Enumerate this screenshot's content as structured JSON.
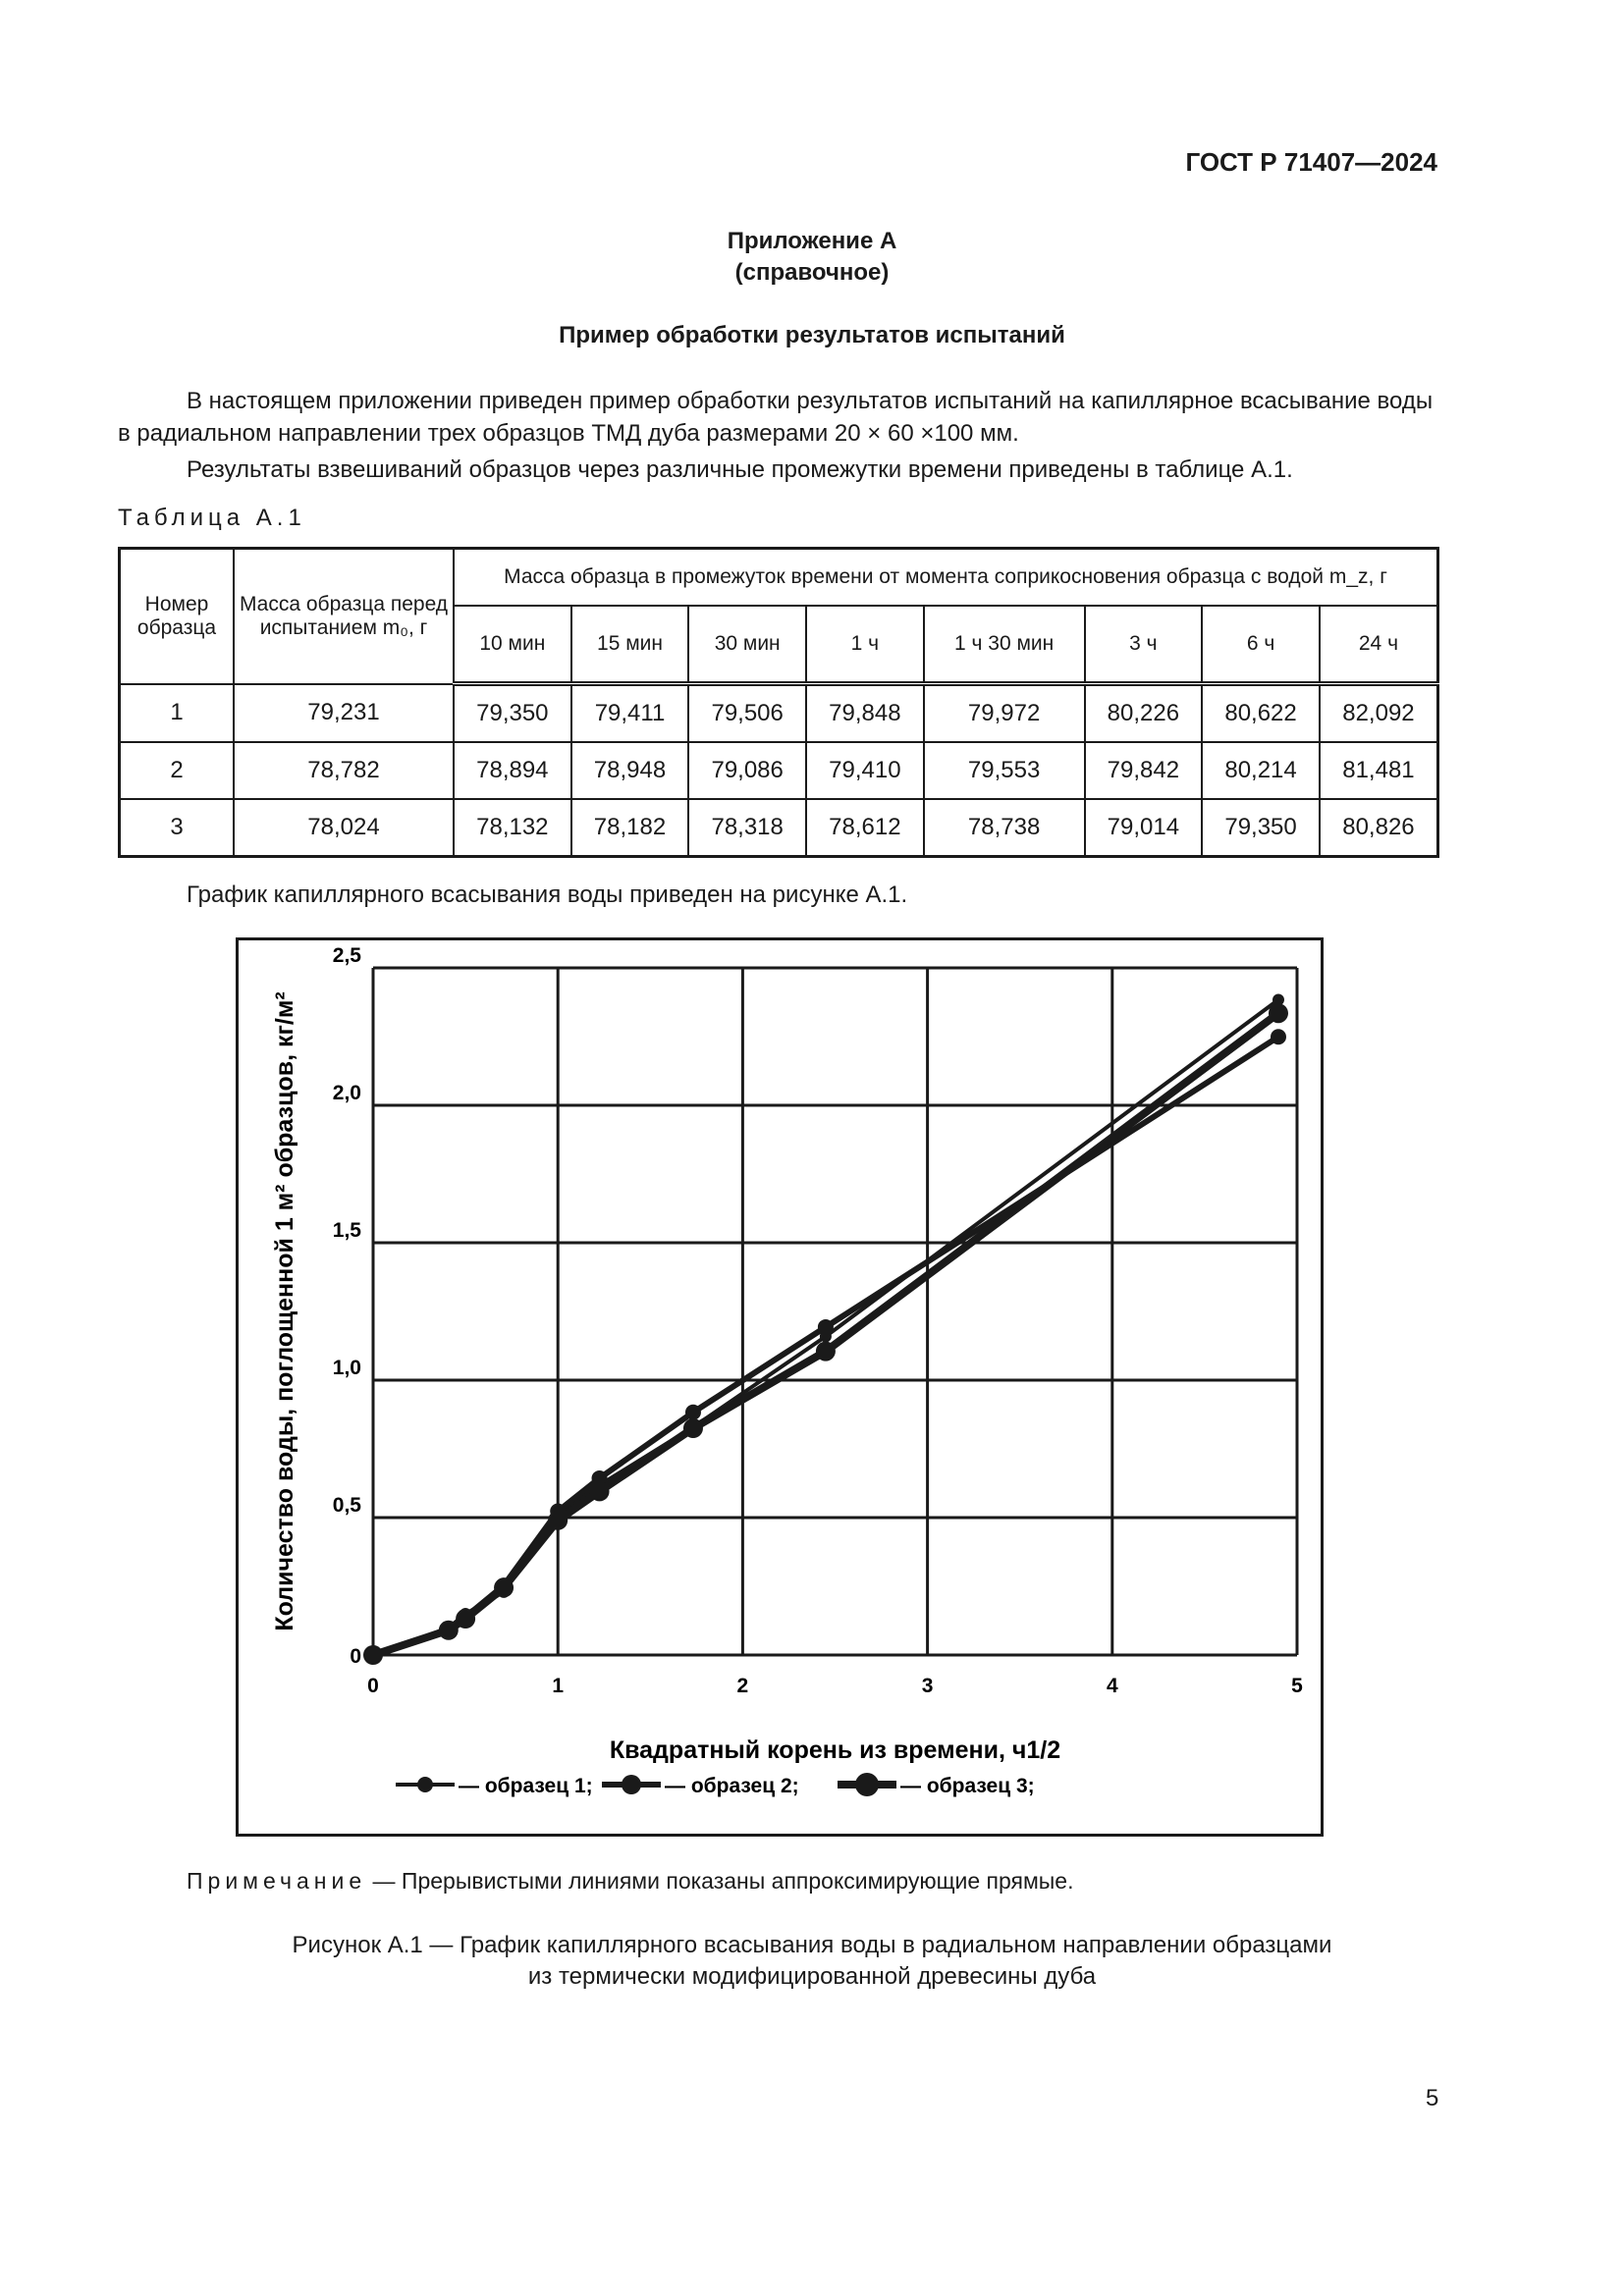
{
  "header": {
    "standard": "ГОСТ Р 71407—2024"
  },
  "appendix": {
    "title": "Приложение А",
    "subtitle": "(справочное)",
    "heading": "Пример обработки результатов испытаний"
  },
  "paragraphs": [
    "В настоящем приложении приведен пример обработки результатов испытаний на капиллярное всасывание воды в радиальном направлении трех образцов ТМД дуба размерами 20 × 60 ×100 мм.",
    "Результаты взвешиваний образцов через различные промежутки времени приведены в таблице А.1."
  ],
  "table": {
    "caption": "Таблица А.1",
    "col_sample": "Номер образца",
    "col_mass0": "Масса образца перед испытанием m₀, г",
    "col_group": "Масса образца в промежуток времени от момента соприкосновения образца с водой m_z, г",
    "times": [
      "10 мин",
      "15 мин",
      "30 мин",
      "1 ч",
      "1 ч 30 мин",
      "3 ч",
      "6 ч",
      "24 ч"
    ],
    "rows": [
      {
        "n": "1",
        "m0": "79,231",
        "values": [
          "79,350",
          "79,411",
          "79,506",
          "79,848",
          "79,972",
          "80,226",
          "80,622",
          "82,092"
        ]
      },
      {
        "n": "2",
        "m0": "78,782",
        "values": [
          "78,894",
          "78,948",
          "79,086",
          "79,410",
          "79,553",
          "79,842",
          "80,214",
          "81,481"
        ]
      },
      {
        "n": "3",
        "m0": "78,024",
        "values": [
          "78,132",
          "78,182",
          "78,318",
          "78,612",
          "78,738",
          "79,014",
          "79,350",
          "80,826"
        ]
      }
    ]
  },
  "chart_intro": "График капиллярного всасывания воды приведен на рисунке А.1.",
  "chart_data": {
    "type": "line",
    "xlabel": "Квадратный корень из времени, ч1/2",
    "ylabel": "Количество воды, поглощенной 1 м² образцов, кг/м²",
    "xlim": [
      0,
      5
    ],
    "ylim": [
      0,
      2.5
    ],
    "xticks": [
      "0",
      "1",
      "2",
      "3",
      "4",
      "5"
    ],
    "yticks": [
      "0",
      "0,5",
      "1,0",
      "1,5",
      "2,0",
      "2,5"
    ],
    "grid": true,
    "legend": "bottom",
    "x": [
      0,
      0.408,
      0.5,
      0.707,
      1,
      1.225,
      1.732,
      2.449,
      4.899
    ],
    "series": [
      {
        "name": "— образец 1;",
        "values": [
          0,
          0.099,
          0.15,
          0.229,
          0.514,
          0.618,
          0.829,
          1.159,
          2.384
        ]
      },
      {
        "name": "— образец 2;",
        "values": [
          0,
          0.093,
          0.138,
          0.253,
          0.523,
          0.643,
          0.883,
          1.193,
          2.249
        ]
      },
      {
        "name": "— образец 3;",
        "values": [
          0,
          0.09,
          0.132,
          0.245,
          0.49,
          0.595,
          0.825,
          1.105,
          2.335
        ]
      }
    ],
    "color": "#1a1a1a"
  },
  "note": {
    "label": "Примечание",
    "text": " — Прерывистыми линиями показаны аппроксимирующие прямые."
  },
  "figure_caption": [
    "Рисунок А.1 — График капиллярного всасывания воды в радиальном направлении образцами",
    "из термически модифицированной древесины дуба"
  ],
  "page_number": "5"
}
